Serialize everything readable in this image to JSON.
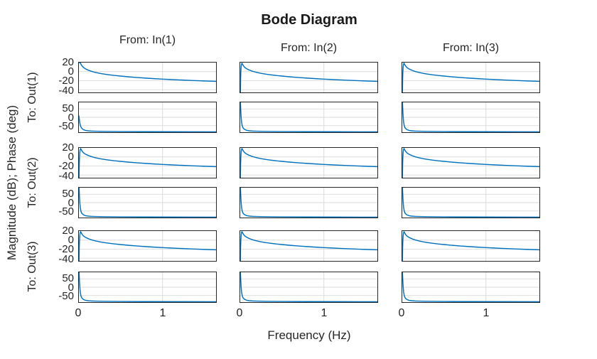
{
  "chart_data": {
    "type": "line",
    "title": "Bode Diagram",
    "xlabel": "Frequency (Hz)",
    "ylabel": "Magnitude (dB); Phase (deg)",
    "columns": [
      "From: In(1)",
      "From: In(2)",
      "From: In(3)"
    ],
    "rows": [
      "To: Out(1)",
      "To: Out(2)",
      "To: Out(3)"
    ],
    "grid": true,
    "legend": "none",
    "colors": {
      "line": "#0072BD",
      "gridline": "#dbdbdb",
      "axis_border": "#262626",
      "text": "#262626"
    },
    "x_axis": {
      "xlim": [
        0,
        1.64
      ],
      "ticks": [
        0,
        1
      ],
      "grid_ticks": [
        1
      ]
    },
    "magnitude_axis": {
      "ylim": [
        -46,
        20
      ],
      "ticks": [
        20,
        0,
        -20,
        -40
      ],
      "grid_ticks": [
        0,
        -20,
        -40
      ]
    },
    "phase_axis": {
      "ylim": [
        -90,
        90
      ],
      "ticks": [
        50,
        0,
        -50
      ],
      "grid_ticks": [
        50,
        0,
        -50
      ]
    },
    "series": {
      "mag": {
        "corner": [
          [
            0,
            20
          ],
          [
            0.016,
            20
          ],
          [
            0.022,
            17.3
          ],
          [
            0.03,
            14.5
          ],
          [
            0.045,
            11
          ],
          [
            0.06,
            8.5
          ],
          [
            0.08,
            6
          ],
          [
            0.1,
            4.2
          ],
          [
            0.13,
            1.9
          ],
          [
            0.16,
            0.1
          ],
          [
            0.2,
            -1.9
          ],
          [
            0.25,
            -3.8
          ],
          [
            0.3,
            -5.4
          ],
          [
            0.36,
            -7
          ],
          [
            0.43,
            -8.6
          ],
          [
            0.5,
            -9.9
          ],
          [
            0.6,
            -11.6
          ],
          [
            0.7,
            -13.1
          ],
          [
            0.8,
            -14.4
          ],
          [
            0.9,
            -15.6
          ],
          [
            1,
            -16.6
          ],
          [
            1.1,
            -17.5
          ],
          [
            1.2,
            -18.4
          ],
          [
            1.35,
            -19.6
          ],
          [
            1.5,
            -20.7
          ],
          [
            1.64,
            -21.6
          ]
        ],
        "spike": [
          [
            0.002,
            -46
          ],
          [
            0.004,
            -18
          ],
          [
            0.007,
            -2
          ],
          [
            0.01,
            8
          ],
          [
            0.013,
            13.5
          ],
          [
            0.017,
            17
          ],
          [
            0.021,
            18.6
          ],
          [
            0.027,
            16.6
          ],
          [
            0.035,
            13.9
          ],
          [
            0.045,
            11.2
          ],
          [
            0.06,
            8.5
          ],
          [
            0.08,
            6
          ],
          [
            0.1,
            4.2
          ],
          [
            0.13,
            1.9
          ],
          [
            0.16,
            0.1
          ],
          [
            0.2,
            -1.9
          ],
          [
            0.25,
            -3.8
          ],
          [
            0.3,
            -5.4
          ],
          [
            0.36,
            -7
          ],
          [
            0.43,
            -8.6
          ],
          [
            0.5,
            -9.9
          ],
          [
            0.6,
            -11.6
          ],
          [
            0.7,
            -13.1
          ],
          [
            0.8,
            -14.4
          ],
          [
            0.9,
            -15.6
          ],
          [
            1,
            -16.6
          ],
          [
            1.1,
            -17.5
          ],
          [
            1.2,
            -18.4
          ],
          [
            1.35,
            -19.6
          ],
          [
            1.5,
            -20.7
          ],
          [
            1.64,
            -21.6
          ]
        ]
      },
      "phase": {
        "mid": [
          [
            0,
            8
          ],
          [
            0.004,
            -8
          ],
          [
            0.008,
            -24
          ],
          [
            0.013,
            -40
          ],
          [
            0.02,
            -53
          ],
          [
            0.03,
            -63
          ],
          [
            0.045,
            -71
          ],
          [
            0.06,
            -76
          ],
          [
            0.08,
            -79
          ],
          [
            0.11,
            -81.5
          ],
          [
            0.15,
            -83
          ],
          [
            0.2,
            -84
          ],
          [
            0.3,
            -85
          ],
          [
            0.5,
            -86
          ],
          [
            0.8,
            -86.8
          ],
          [
            1.2,
            -87.3
          ],
          [
            1.64,
            -87.6
          ]
        ],
        "top": [
          [
            0.002,
            90
          ],
          [
            0.005,
            58
          ],
          [
            0.008,
            26
          ],
          [
            0.012,
            -6
          ],
          [
            0.017,
            -32
          ],
          [
            0.024,
            -51
          ],
          [
            0.033,
            -63
          ],
          [
            0.045,
            -70
          ],
          [
            0.06,
            -75
          ],
          [
            0.08,
            -79
          ],
          [
            0.11,
            -81.5
          ],
          [
            0.15,
            -83
          ],
          [
            0.2,
            -84
          ],
          [
            0.3,
            -85
          ],
          [
            0.5,
            -86
          ],
          [
            0.8,
            -86.8
          ],
          [
            1.2,
            -87.3
          ],
          [
            1.64,
            -87.6
          ]
        ]
      }
    },
    "cell_profiles": {
      "mag": [
        [
          "corner",
          "spike",
          "spike"
        ],
        [
          "spike",
          "spike",
          "spike"
        ],
        [
          "spike",
          "spike",
          "spike"
        ]
      ],
      "phase": [
        [
          "mid",
          "top",
          "top"
        ],
        [
          "top",
          "top",
          "top"
        ],
        [
          "top",
          "top",
          "top"
        ]
      ]
    }
  }
}
